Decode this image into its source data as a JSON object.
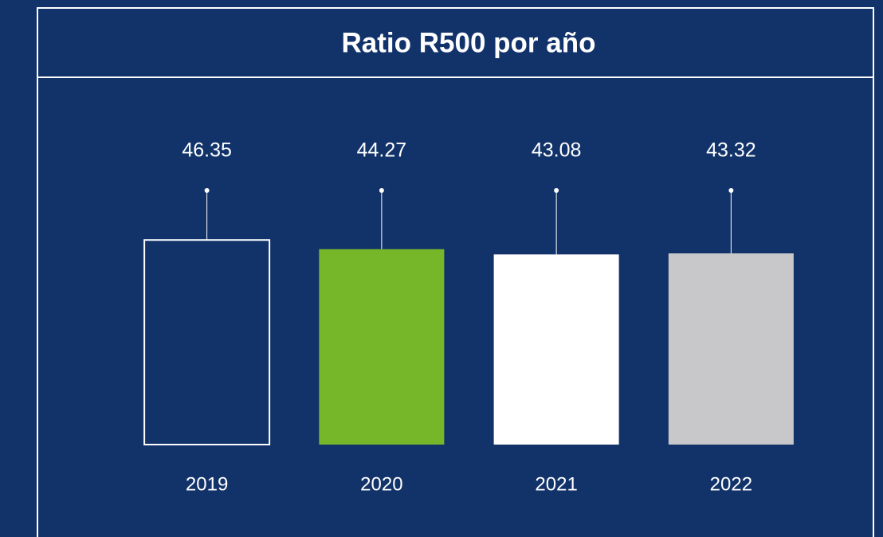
{
  "chart_data": {
    "type": "bar",
    "title": "Ratio R500 por año",
    "categories": [
      "2019",
      "2020",
      "2021",
      "2022"
    ],
    "values": [
      46.35,
      44.27,
      43.08,
      43.32
    ],
    "colors": [
      "#12336a",
      "#76b72a",
      "#ffffff",
      "#c8c8ca"
    ],
    "edgecolors": [
      "#ffffff",
      null,
      null,
      null
    ],
    "ylim": [
      0,
      50
    ]
  }
}
